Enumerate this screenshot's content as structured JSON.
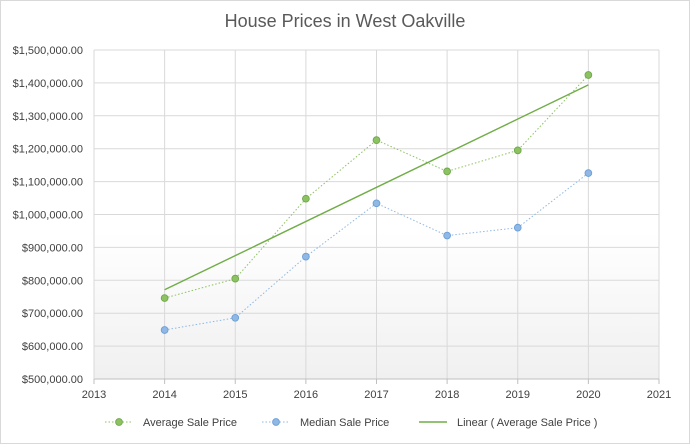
{
  "chart_data": {
    "type": "scatter",
    "title": "House Prices in West Oakville",
    "xlim": [
      2013,
      2021
    ],
    "ylim": [
      500000,
      1500000
    ],
    "x_ticks": [
      "2013",
      "2014",
      "2015",
      "2016",
      "2017",
      "2018",
      "2019",
      "2020",
      "2021"
    ],
    "y_ticks": [
      "$500,000.00",
      "$600,000.00",
      "$700,000.00",
      "$800,000.00",
      "$900,000.00",
      "$1,000,000.00",
      "$1,100,000.00",
      "$1,200,000.00",
      "$1,300,000.00",
      "$1,400,000.00",
      "$1,500,000.00"
    ],
    "grid": true,
    "legend_position": "bottom",
    "series": [
      {
        "name": "Average Sale Price",
        "color": "#8cc262",
        "marker": "circle",
        "line": "dotted",
        "x": [
          2014,
          2015,
          2016,
          2017,
          2018,
          2019,
          2020
        ],
        "y": [
          746000,
          805000,
          1048000,
          1226000,
          1131000,
          1195000,
          1424000
        ]
      },
      {
        "name": "Median Sale Price",
        "color": "#8fb8e4",
        "marker": "circle",
        "line": "dotted",
        "x": [
          2014,
          2015,
          2016,
          2017,
          2018,
          2019,
          2020
        ],
        "y": [
          649000,
          686000,
          872000,
          1034000,
          936000,
          960000,
          1126000
        ]
      },
      {
        "name": "Linear ( Average Sale Price )",
        "color": "#70ad47",
        "marker": "none",
        "line": "solid",
        "x": [
          2014,
          2020
        ],
        "y": [
          771000,
          1394000
        ]
      }
    ]
  }
}
